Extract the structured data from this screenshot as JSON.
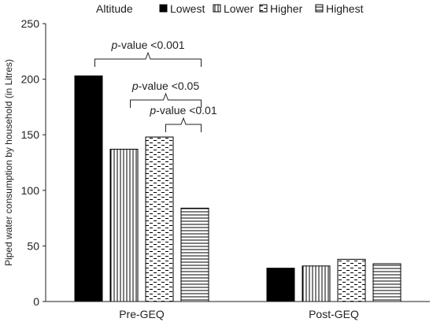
{
  "chart_data": {
    "type": "bar",
    "title": "",
    "xlabel": "",
    "ylabel": "Piped water consumption by household (in Litres)",
    "categories": [
      "Pre-GEQ",
      "Post-GEQ"
    ],
    "ylim": [
      0,
      250
    ],
    "yticks": [
      0,
      50,
      100,
      150,
      200,
      250
    ],
    "grid": false,
    "legend": {
      "title": "Altitude",
      "position": "top"
    },
    "series": [
      {
        "name": "Lowest",
        "values": [
          203,
          30
        ],
        "pattern": "solid"
      },
      {
        "name": "Lower",
        "values": [
          137,
          32
        ],
        "pattern": "vertical-lines"
      },
      {
        "name": "Higher",
        "values": [
          148,
          38
        ],
        "pattern": "dashes"
      },
      {
        "name": "Highest",
        "values": [
          84,
          34
        ],
        "pattern": "horizontal-lines"
      }
    ],
    "annotations": [
      {
        "prefix": "p",
        "text": "-value <0.001",
        "from_series": 0,
        "to_series": 3
      },
      {
        "prefix": "p",
        "text": "-value <0.05",
        "from_series": 1,
        "to_series": 3
      },
      {
        "prefix": "p",
        "text": "-value <0.01",
        "from_series": 2,
        "to_series": 3
      }
    ]
  }
}
